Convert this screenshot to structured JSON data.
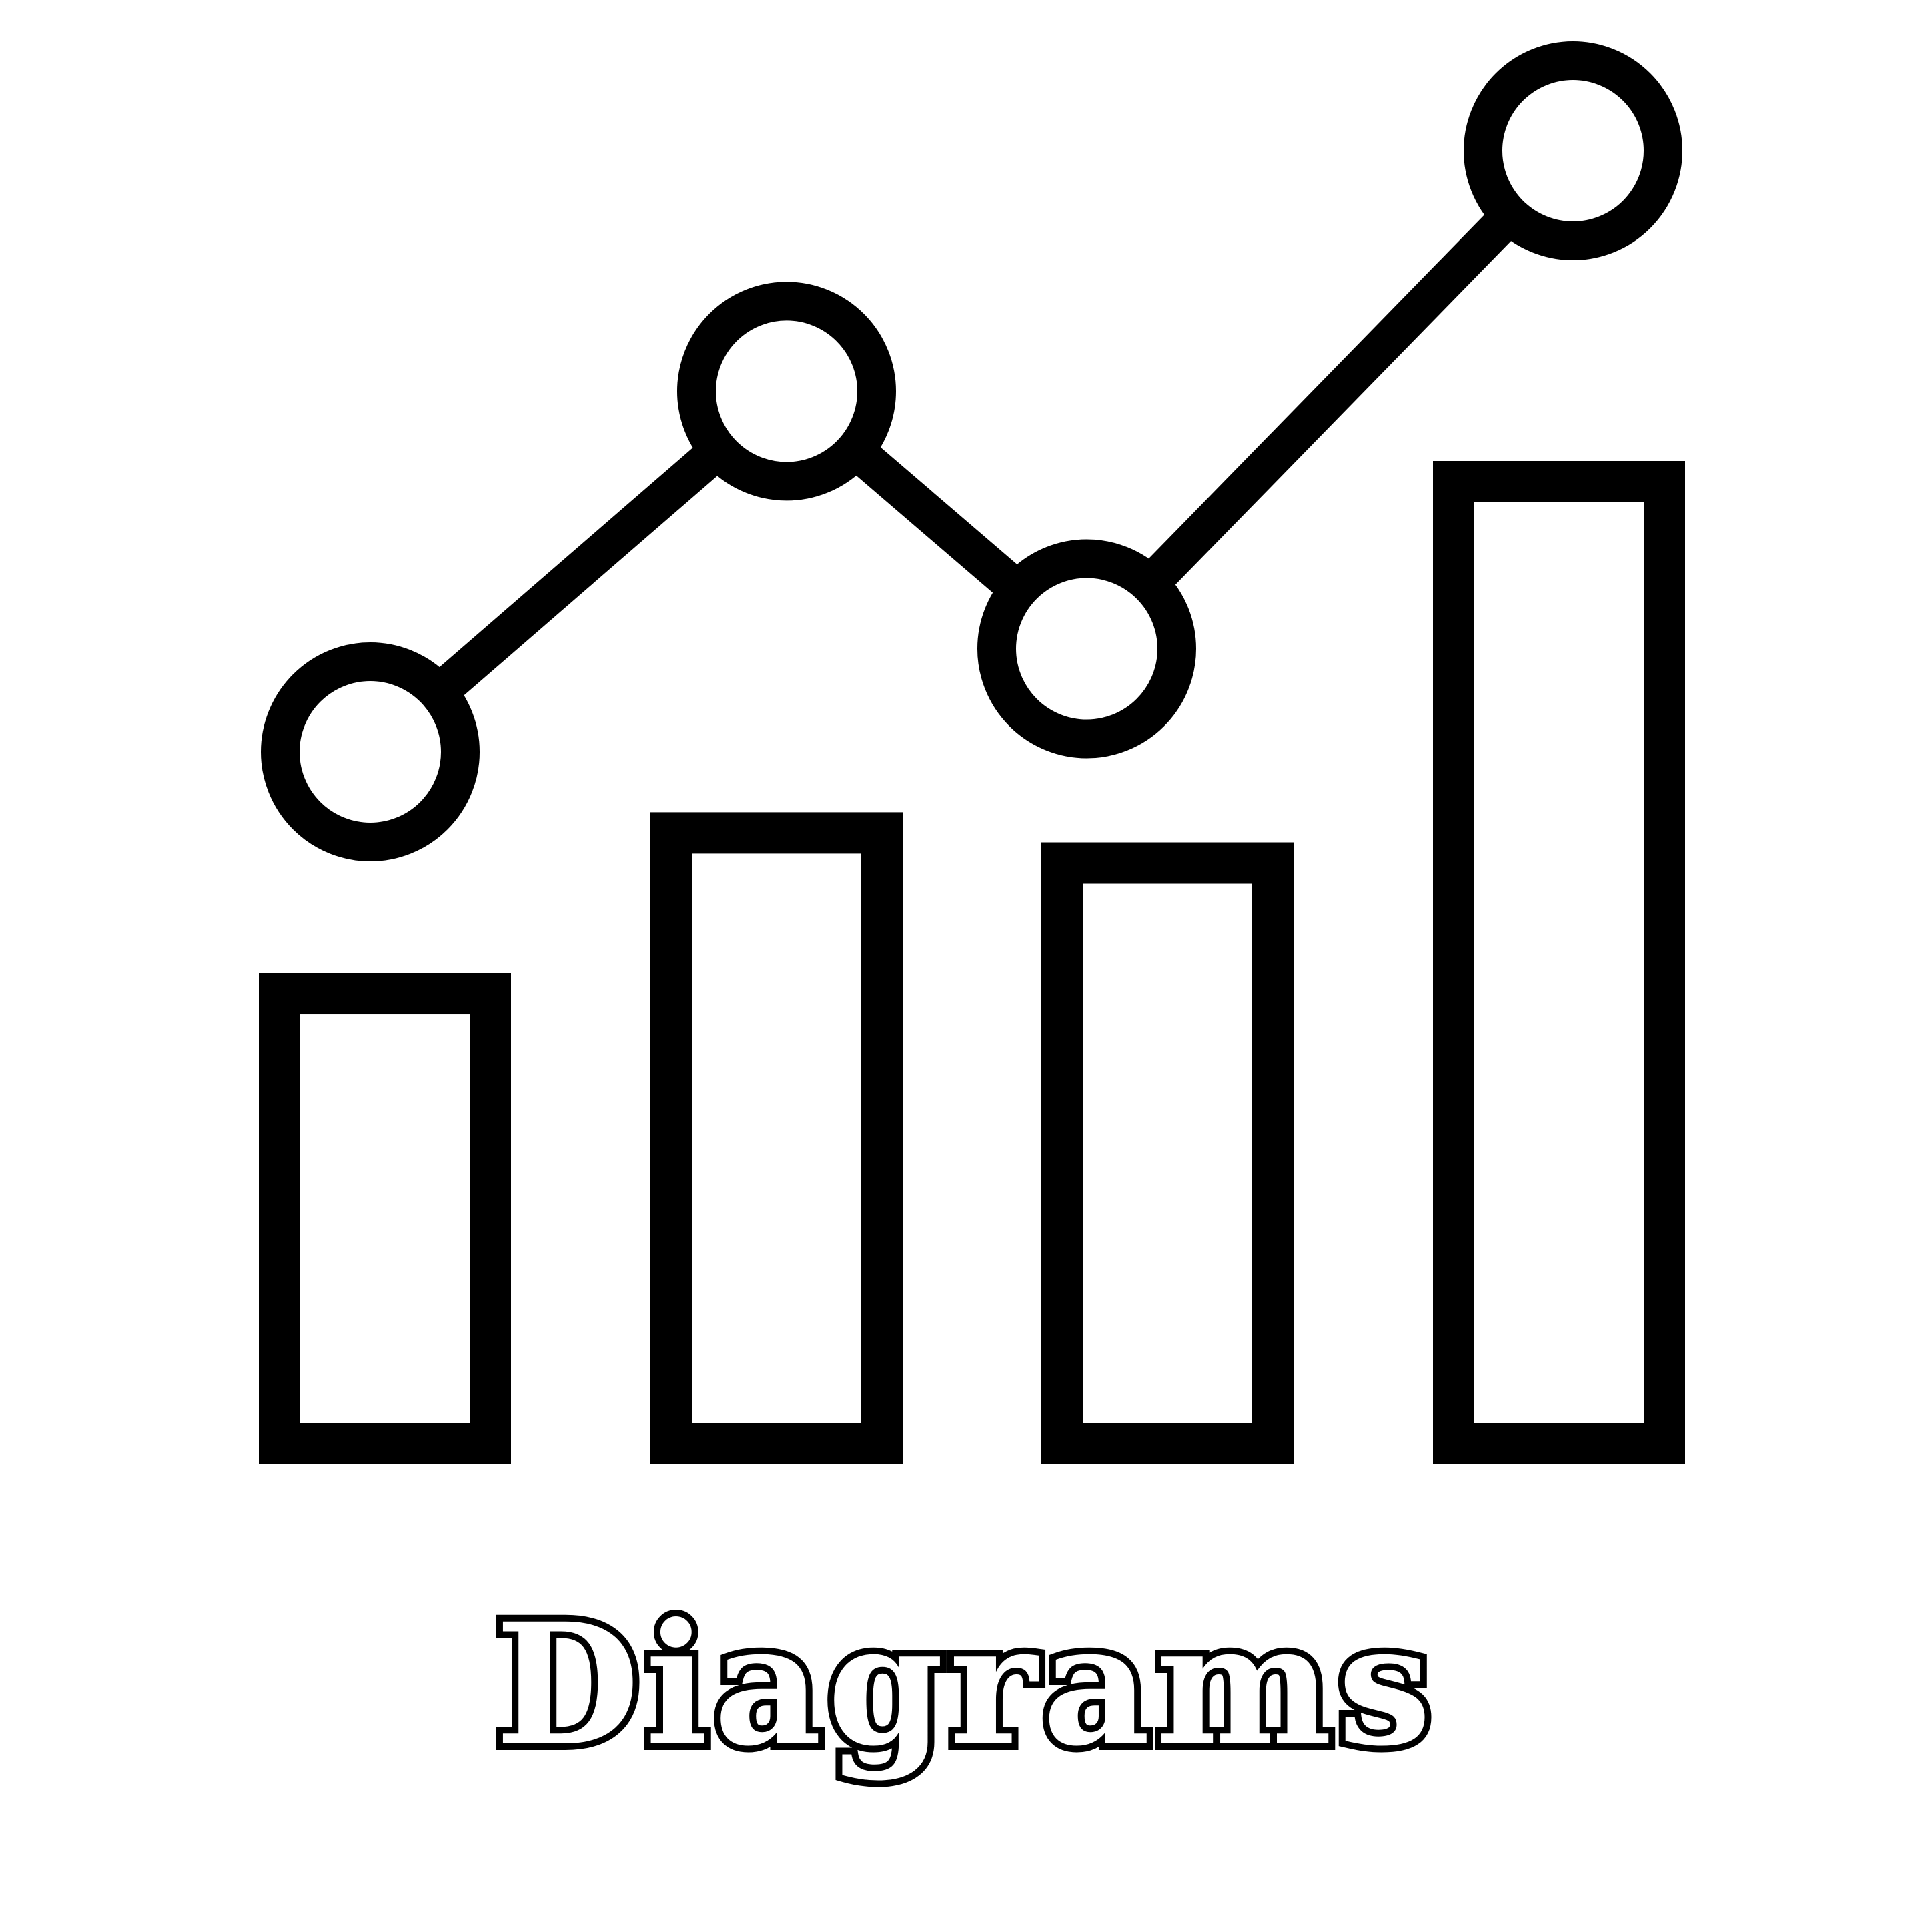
{
  "caption": "Diagrams",
  "icon": {
    "name": "bar-and-line-chart-icon",
    "stroke_color": "#000000",
    "fill_color": "#ffffff",
    "bars": [
      {
        "relative_height": 0.49
      },
      {
        "relative_height": 0.65
      },
      {
        "relative_height": 0.62
      },
      {
        "relative_height": 1.0
      }
    ],
    "line_points": [
      {
        "relative_level": 0.65
      },
      {
        "relative_level": 0.86
      },
      {
        "relative_level": 0.71
      },
      {
        "relative_level": 1.0
      }
    ]
  }
}
